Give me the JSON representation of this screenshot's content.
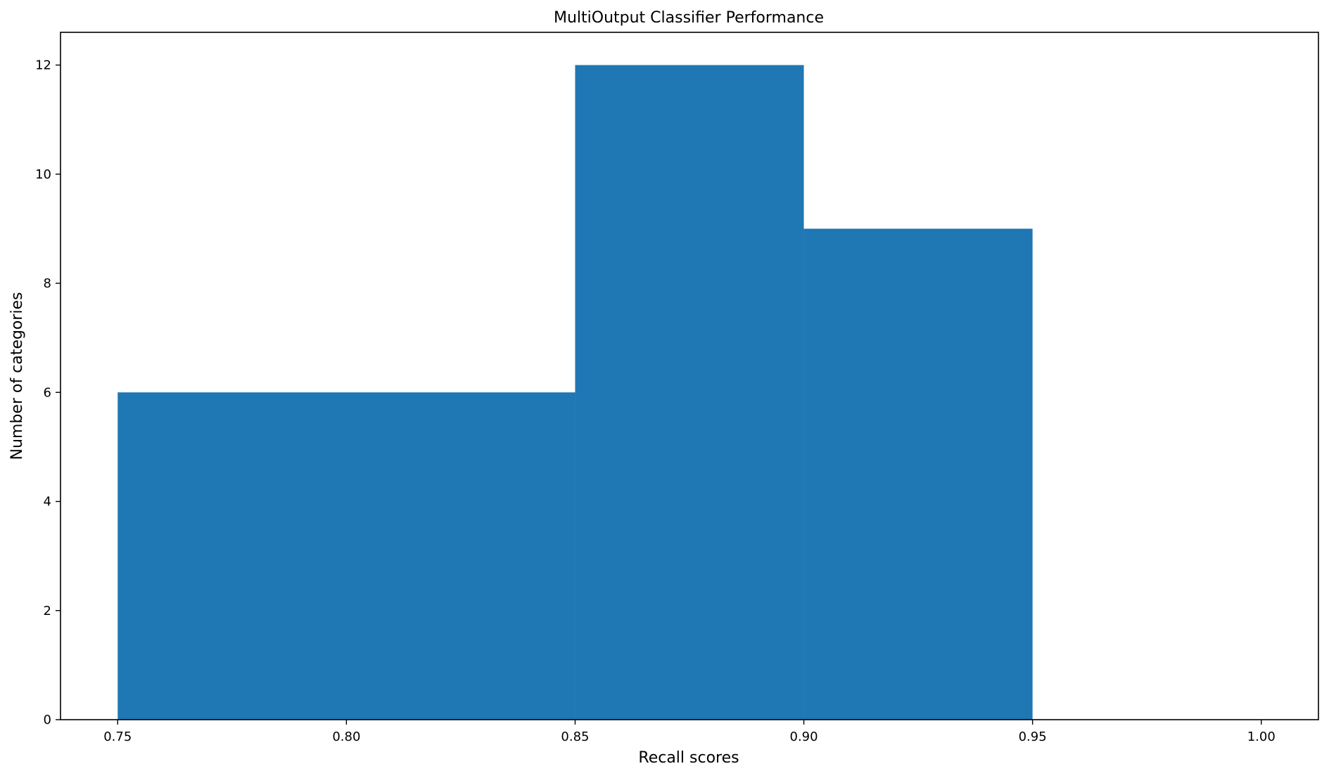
{
  "chart_data": {
    "type": "bar",
    "title": "MultiOutput Classifier Performance",
    "xlabel": "Recall scores",
    "ylabel": "Number of categories",
    "bins": [
      {
        "x0": 0.75,
        "x1": 0.85,
        "count": 6
      },
      {
        "x0": 0.85,
        "x1": 0.9,
        "count": 12
      },
      {
        "x0": 0.9,
        "x1": 0.95,
        "count": 9
      }
    ],
    "xlim": [
      0.7375,
      1.0125
    ],
    "ylim": [
      0,
      12.6
    ],
    "xticks": [
      0.75,
      0.8,
      0.85,
      0.9,
      0.95,
      1.0
    ],
    "xtick_labels": [
      "0.75",
      "0.80",
      "0.85",
      "0.90",
      "0.95",
      "1.00"
    ],
    "yticks": [
      0,
      2,
      4,
      6,
      8,
      10,
      12
    ],
    "ytick_labels": [
      "0",
      "2",
      "4",
      "6",
      "8",
      "10",
      "12"
    ],
    "bar_color": "#1f77b4",
    "grid": false,
    "legend": "none"
  }
}
